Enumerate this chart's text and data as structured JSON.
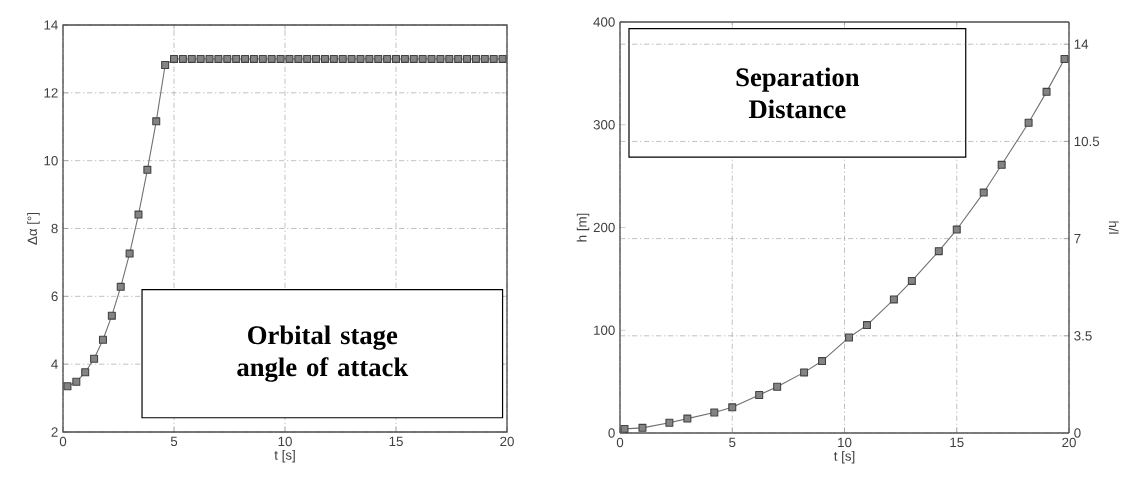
{
  "chart_data": [
    {
      "type": "line",
      "xlabel": "t [s]",
      "ylabel": "Δα [°]",
      "xlim": [
        0,
        20
      ],
      "ylim": [
        2,
        14
      ],
      "xticks": [
        0,
        5,
        10,
        15,
        20
      ],
      "yticks": [
        2,
        4,
        6,
        8,
        10,
        12,
        14
      ],
      "grid": true,
      "marker": "square",
      "line_style": "solid",
      "annotations": [
        "Orbital stage angle of attack"
      ],
      "series": [
        {
          "color": "#6e6e6e",
          "x": [
            0.2,
            0.6,
            1.0,
            1.4,
            1.8,
            2.2,
            2.6,
            3.0,
            3.4,
            3.8,
            4.2,
            4.6,
            5.0,
            5.4,
            5.8,
            6.2,
            6.6,
            7.0,
            7.4,
            7.8,
            8.2,
            8.6,
            9.0,
            9.4,
            9.8,
            10.2,
            10.6,
            11.0,
            11.4,
            11.8,
            12.2,
            12.6,
            13.0,
            13.4,
            13.8,
            14.2,
            14.6,
            15.0,
            15.4,
            15.8,
            16.2,
            16.6,
            17.0,
            17.4,
            17.8,
            18.2,
            18.6,
            19.0,
            19.4,
            19.8
          ],
          "values": [
            3.35,
            3.48,
            3.76,
            4.16,
            4.72,
            5.43,
            6.28,
            7.26,
            8.41,
            9.73,
            11.16,
            12.82,
            13,
            13,
            13,
            13,
            13,
            13,
            13,
            13,
            13,
            13,
            13,
            13,
            13,
            13,
            13,
            13,
            13,
            13,
            13,
            13,
            13,
            13,
            13,
            13,
            13,
            13,
            13,
            13,
            13,
            13,
            13,
            13,
            13,
            13,
            13,
            13,
            13,
            13
          ]
        }
      ]
    },
    {
      "type": "line",
      "xlabel": "t [s]",
      "ylabel": "h [m]",
      "y2label": "h/l",
      "xlim": [
        0,
        20
      ],
      "ylim": [
        0,
        400
      ],
      "y2lim": [
        0,
        14.8
      ],
      "xticks": [
        0,
        5,
        10,
        15,
        20
      ],
      "yticks": [
        0,
        100,
        200,
        300,
        400
      ],
      "y2ticks": [
        0,
        3.5,
        7,
        10.5,
        14
      ],
      "grid": true,
      "marker": "square",
      "line_style": "solid",
      "annotations": [
        "Separation Distance"
      ],
      "series": [
        {
          "color": "#6e6e6e",
          "x": [
            0.2,
            1.0,
            2.2,
            3.0,
            4.2,
            5.0,
            6.2,
            7.0,
            8.2,
            9.0,
            10.2,
            11.0,
            12.2,
            13.0,
            14.2,
            15.0,
            16.2,
            17.0,
            18.2,
            19.0,
            19.8
          ],
          "values": [
            4,
            5,
            10,
            14,
            20,
            25,
            37,
            45,
            59,
            70,
            93,
            105,
            130,
            148,
            177,
            198,
            234,
            261,
            302,
            332,
            364
          ]
        }
      ]
    }
  ]
}
